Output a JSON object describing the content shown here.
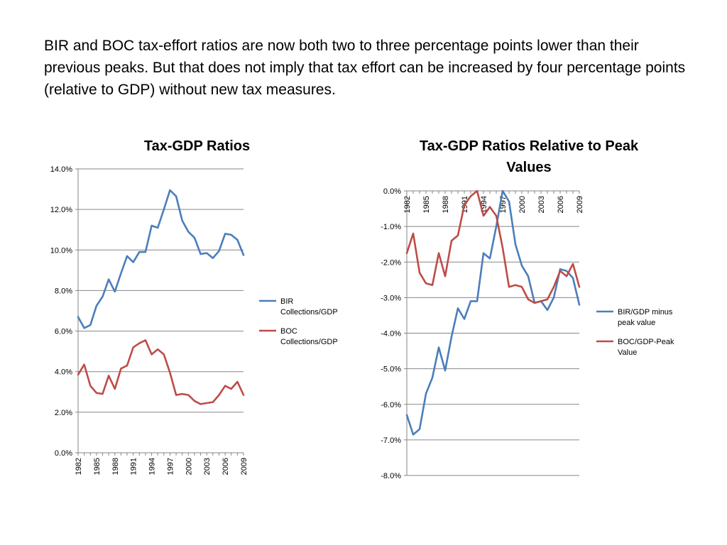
{
  "slide": {
    "text": "BIR and BOC tax-effort ratios are now both two to three percentage points lower than their previous peaks.  But that does not imply that tax effort can be increased by four percentage points  (relative to GDP) without new tax measures."
  },
  "colors": {
    "bir": "#4a7ebb",
    "boc": "#be4b48",
    "grid": "#868686"
  },
  "chart_data": [
    {
      "type": "line",
      "title": "Tax-GDP Ratios",
      "x": [
        1982,
        1983,
        1984,
        1985,
        1986,
        1987,
        1988,
        1989,
        1990,
        1991,
        1992,
        1993,
        1994,
        1995,
        1996,
        1997,
        1998,
        1999,
        2000,
        2001,
        2002,
        2003,
        2004,
        2005,
        2006,
        2007,
        2008,
        2009
      ],
      "x_tick_labels": [
        "1982",
        "1985",
        "1988",
        "1991",
        "1994",
        "1997",
        "2000",
        "2003",
        "2006",
        "2009"
      ],
      "y_tick_labels": [
        "0.0%",
        "2.0%",
        "4.0%",
        "6.0%",
        "8.0%",
        "10.0%",
        "12.0%",
        "14.0%"
      ],
      "ylim": [
        0,
        14
      ],
      "y_unit": "%",
      "grid": true,
      "legend_position": "right",
      "series": [
        {
          "name": "BIR Collections/GDP",
          "color_key": "bir",
          "values": [
            6.7,
            6.15,
            6.3,
            7.25,
            7.7,
            8.55,
            7.95,
            8.85,
            9.7,
            9.4,
            9.9,
            9.9,
            11.2,
            11.1,
            12.0,
            12.95,
            12.65,
            11.45,
            10.9,
            10.6,
            9.8,
            9.85,
            9.6,
            9.95,
            10.8,
            10.75,
            10.5,
            9.75
          ]
        },
        {
          "name": "BOC Collections/GDP",
          "color_key": "boc",
          "values": [
            3.85,
            4.35,
            3.3,
            2.95,
            2.9,
            3.8,
            3.15,
            4.15,
            4.3,
            5.2,
            5.4,
            5.55,
            4.85,
            5.1,
            4.85,
            3.95,
            2.85,
            2.9,
            2.85,
            2.55,
            2.4,
            2.45,
            2.5,
            2.85,
            3.3,
            3.15,
            3.5,
            2.85
          ]
        }
      ]
    },
    {
      "type": "line",
      "title": "Tax-GDP Ratios Relative to Peak Values",
      "x": [
        1982,
        1983,
        1984,
        1985,
        1986,
        1987,
        1988,
        1989,
        1990,
        1991,
        1992,
        1993,
        1994,
        1995,
        1996,
        1997,
        1998,
        1999,
        2000,
        2001,
        2002,
        2003,
        2004,
        2005,
        2006,
        2007,
        2008,
        2009
      ],
      "x_tick_labels": [
        "1982",
        "1985",
        "1988",
        "1991",
        "1994",
        "1997",
        "2000",
        "2003",
        "2006",
        "2009"
      ],
      "y_tick_labels": [
        "0.0%",
        "-1.0%",
        "-2.0%",
        "-3.0%",
        "-4.0%",
        "-5.0%",
        "-6.0%",
        "-7.0%",
        "-8.0%"
      ],
      "ylim": [
        -8,
        0
      ],
      "y_unit": "%",
      "grid": true,
      "legend_position": "right",
      "series": [
        {
          "name": "BIR/GDP minus peak value",
          "color_key": "bir",
          "values": [
            -6.3,
            -6.85,
            -6.7,
            -5.7,
            -5.25,
            -4.4,
            -5.05,
            -4.1,
            -3.3,
            -3.6,
            -3.1,
            -3.1,
            -1.75,
            -1.9,
            -1.0,
            0.0,
            -0.3,
            -1.5,
            -2.1,
            -2.4,
            -3.15,
            -3.1,
            -3.35,
            -3.0,
            -2.2,
            -2.25,
            -2.45,
            -3.2
          ]
        },
        {
          "name": "BOC/GDP-Peak Value",
          "color_key": "boc",
          "values": [
            -1.75,
            -1.2,
            -2.3,
            -2.6,
            -2.65,
            -1.75,
            -2.4,
            -1.4,
            -1.25,
            -0.4,
            -0.15,
            0.0,
            -0.7,
            -0.45,
            -0.7,
            -1.6,
            -2.7,
            -2.65,
            -2.7,
            -3.05,
            -3.15,
            -3.1,
            -3.05,
            -2.7,
            -2.25,
            -2.4,
            -2.05,
            -2.7
          ]
        }
      ]
    }
  ]
}
